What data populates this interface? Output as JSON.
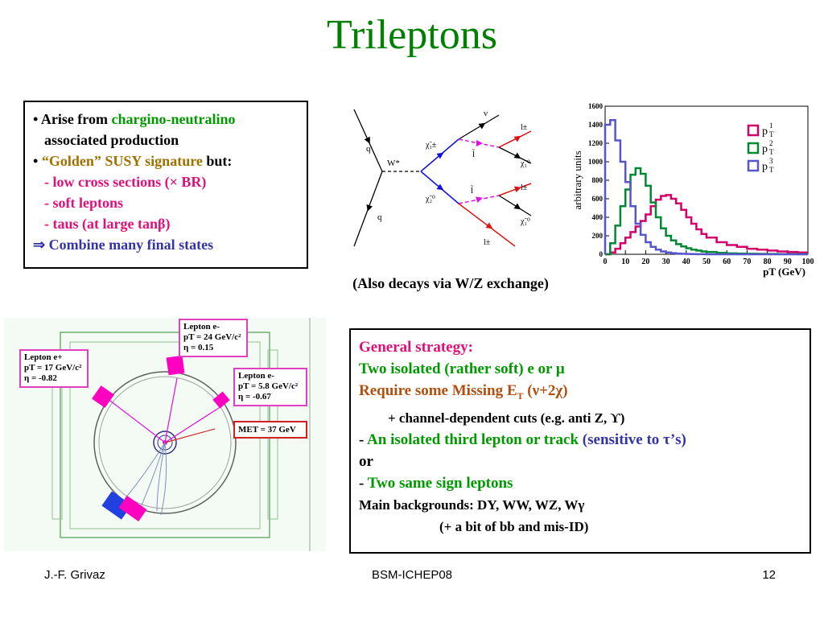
{
  "slide": {
    "title": "Trileptons",
    "caption": "(Also decays via W/Z exchange)"
  },
  "box1": {
    "bullet": "•",
    "l1_a": "Arise from ",
    "l1_b": "chargino-neutralino",
    "l2": "associated production",
    "l3_a": "“Golden” SUSY signature",
    "l3_b": " but:",
    "l4": "- low cross sections (× BR)",
    "l5": "- soft leptons",
    "l6": "- taus (at large tanβ)",
    "l7_arrow": "⇒",
    "l7": " Combine many final states"
  },
  "box2": {
    "l1": "General strategy:",
    "l2": "Two isolated (rather soft) e or μ",
    "l3": "Require some Missing E",
    "l3_sub": "T",
    "l3_end": " (ν+2χ)",
    "l4": "+ channel-dependent cuts (e.g. anti Z, ϒ)",
    "l5_dash": "- ",
    "l5_a": "An isolated third lepton or track",
    "l5_b": " (sensitive to τ’s)",
    "l6": "or",
    "l7_dash": "- ",
    "l7": "Two same sign leptons",
    "l8": "Main backgrounds: DY, WW, WZ, Wγ",
    "l9": "(+ a bit of bb and mis-ID)"
  },
  "feynman": {
    "q_top": "q",
    "q_bottom": "q",
    "w": "W*",
    "chi1": "χ̃₁±",
    "chi2": "χ̃₂⁰",
    "nu": "ν",
    "l_tilde1": "l̃",
    "l_tilde2": "l̃",
    "l1": "l±",
    "l2": "l±",
    "l3": "l±",
    "chi0a": "χ̃₁⁰",
    "chi0b": "χ̃₁⁰"
  },
  "event": {
    "lep1": [
      "Lepton e-",
      "pT = 24 GeV/c²",
      "η =  0.15"
    ],
    "lep2": [
      "Lepton e+",
      "pT = 17 GeV/c²",
      "η =  -0.82"
    ],
    "lep3": [
      "Lepton e-",
      "pT = 5.8 GeV/c²",
      "η =  -0.67"
    ],
    "met": "MET = 37 GeV"
  },
  "chart_data": {
    "type": "line",
    "title": "",
    "xlabel": "pT (GeV)",
    "ylabel": "arbitrary units",
    "xlim": [
      0,
      100
    ],
    "ylim": [
      0,
      1600
    ],
    "xticks": [
      0,
      10,
      20,
      30,
      40,
      50,
      60,
      70,
      80,
      90,
      100
    ],
    "yticks": [
      0,
      200,
      400,
      600,
      800,
      1000,
      1200,
      1400,
      1600
    ],
    "legend_position": "top-right",
    "x": [
      0,
      2.5,
      5,
      7.5,
      10,
      12.5,
      15,
      17.5,
      20,
      22.5,
      25,
      27.5,
      30,
      32.5,
      35,
      37.5,
      40,
      42.5,
      45,
      47.5,
      50,
      55,
      60,
      65,
      70,
      75,
      80,
      85,
      90,
      95,
      100
    ],
    "series": [
      {
        "name": "pT1",
        "color": "#d4006a",
        "values": [
          0,
          20,
          60,
          120,
          180,
          240,
          300,
          360,
          430,
          520,
          590,
          630,
          640,
          600,
          550,
          480,
          400,
          330,
          270,
          220,
          180,
          130,
          100,
          80,
          60,
          50,
          40,
          30,
          25,
          20,
          15
        ]
      },
      {
        "name": "pT2",
        "color": "#008833",
        "values": [
          0,
          120,
          310,
          520,
          700,
          860,
          930,
          870,
          740,
          560,
          400,
          280,
          200,
          150,
          110,
          85,
          65,
          50,
          40,
          30,
          25,
          15,
          10,
          8,
          5,
          4,
          3,
          2,
          2,
          1,
          1
        ]
      },
      {
        "name": "pT3",
        "color": "#5555cc",
        "values": [
          1400,
          1450,
          1230,
          1000,
          780,
          520,
          330,
          210,
          130,
          80,
          50,
          30,
          20,
          12,
          8,
          5,
          3,
          2,
          1,
          1,
          0,
          0,
          0,
          0,
          0,
          0,
          0,
          0,
          0,
          0,
          0
        ]
      }
    ],
    "legend_labels": [
      "p",
      "p",
      "p"
    ],
    "legend_sub": "T",
    "legend_sup": [
      "1",
      "2",
      "3"
    ]
  },
  "footer": {
    "author": "J.-F. Grivaz",
    "event_name": "BSM-ICHEP08",
    "page": "12"
  }
}
